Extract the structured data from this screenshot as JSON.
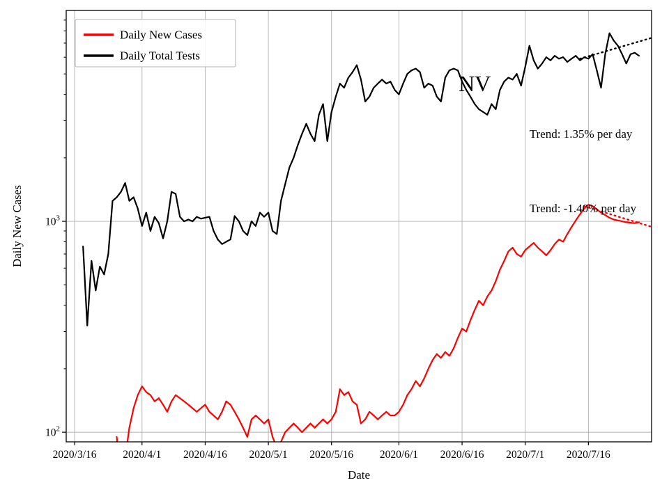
{
  "figure": {
    "background_color": "#ffffff"
  },
  "chart_data": {
    "type": "line",
    "title": "",
    "xlabel": "Date",
    "ylabel": "Daily New Cases",
    "y_scale": "log",
    "ylim": [
      90,
      10000
    ],
    "xlim_days": [
      -2,
      137
    ],
    "x_unit": "days since 2020/3/16, daily cadence",
    "grid": true,
    "grid_color": "#b0b0b0",
    "x_ticks": [
      {
        "day": 0,
        "label": "2020/3/16"
      },
      {
        "day": 16,
        "label": "2020/4/1"
      },
      {
        "day": 31,
        "label": "2020/4/16"
      },
      {
        "day": 46,
        "label": "2020/5/1"
      },
      {
        "day": 61,
        "label": "2020/5/16"
      },
      {
        "day": 77,
        "label": "2020/6/1"
      },
      {
        "day": 92,
        "label": "2020/6/16"
      },
      {
        "day": 107,
        "label": "2020/7/1"
      },
      {
        "day": 122,
        "label": "2020/7/16"
      }
    ],
    "y_ticks": [
      {
        "value": 100,
        "label": "10^2",
        "base": "10",
        "exp": "2"
      },
      {
        "value": 1000,
        "label": "10^3",
        "base": "10",
        "exp": "3"
      }
    ],
    "legend": {
      "position": "upper left",
      "entries": [
        "Daily New Cases",
        "Daily Total Tests"
      ]
    },
    "series": [
      {
        "name": "Daily New Cases",
        "color": "#ff0000",
        "start_day": 10,
        "start_date": "2020/3/26",
        "values": [
          95,
          60,
          75,
          105,
          130,
          150,
          165,
          155,
          150,
          140,
          145,
          135,
          125,
          140,
          150,
          145,
          140,
          135,
          130,
          125,
          130,
          135,
          125,
          120,
          115,
          125,
          140,
          135,
          125,
          115,
          105,
          95,
          115,
          120,
          115,
          110,
          115,
          95,
          85,
          90,
          100,
          105,
          110,
          105,
          100,
          105,
          110,
          105,
          110,
          115,
          110,
          115,
          125,
          160,
          150,
          155,
          140,
          135,
          110,
          115,
          125,
          120,
          115,
          120,
          125,
          120,
          120,
          125,
          135,
          150,
          160,
          175,
          165,
          180,
          200,
          220,
          235,
          225,
          240,
          230,
          250,
          280,
          310,
          300,
          340,
          380,
          420,
          400,
          440,
          470,
          520,
          590,
          650,
          720,
          750,
          700,
          680,
          730,
          760,
          790,
          750,
          720,
          690,
          730,
          780,
          820,
          800,
          870,
          940,
          1010,
          1080,
          1150,
          1200,
          1180,
          1140,
          1100,
          1070,
          1040,
          1020,
          1010,
          1000,
          990,
          985,
          980,
          990
        ]
      },
      {
        "name": "Daily Total Tests",
        "color": "#000000",
        "start_day": 2,
        "start_date": "2020/3/18",
        "values": [
          760,
          320,
          650,
          470,
          610,
          560,
          700,
          1250,
          1300,
          1380,
          1520,
          1250,
          1300,
          1150,
          950,
          1100,
          900,
          1050,
          980,
          830,
          1000,
          1380,
          1350,
          1050,
          1000,
          1020,
          1000,
          1050,
          1030,
          1040,
          1050,
          900,
          820,
          780,
          800,
          820,
          1060,
          1000,
          900,
          860,
          1000,
          950,
          1100,
          1050,
          1100,
          900,
          870,
          1250,
          1500,
          1800,
          2000,
          2300,
          2600,
          2900,
          2600,
          2400,
          3200,
          3600,
          2400,
          3300,
          3900,
          4500,
          4300,
          4800,
          5100,
          5500,
          4700,
          3700,
          3900,
          4300,
          4500,
          4700,
          4500,
          4600,
          4200,
          4000,
          4500,
          5000,
          5200,
          5300,
          5100,
          4300,
          4500,
          4400,
          3900,
          3700,
          4800,
          5200,
          5300,
          5200,
          4600,
          4200,
          3900,
          3600,
          3400,
          3300,
          3200,
          3600,
          3400,
          4200,
          4600,
          4800,
          4700,
          5000,
          4400,
          5400,
          6800,
          5800,
          5300,
          5600,
          6000,
          5800,
          6100,
          5900,
          6000,
          5700,
          5900,
          6100,
          5800,
          6000,
          5900,
          6200,
          5200,
          4300,
          6200,
          7800,
          7200,
          6800,
          6200,
          5600,
          6200,
          6300,
          6100
        ]
      }
    ],
    "trend_lines": [
      {
        "series": "Daily Total Tests",
        "pct_per_day": 1.35,
        "start_day": 120,
        "end_day": 137,
        "start_value": 5900,
        "style": "dotted",
        "color": "#000000"
      },
      {
        "series": "Daily New Cases",
        "pct_per_day": -1.4,
        "start_day": 121,
        "end_day": 137,
        "start_value": 1180,
        "style": "dotted",
        "color": "#ff0000"
      }
    ],
    "annotations": [
      {
        "name": "state-code-annotation",
        "text": "NV",
        "day": 95,
        "value": 4500,
        "font_size": 32,
        "color": "#000000",
        "anchor": "middle"
      },
      {
        "name": "trend-label-tests",
        "text": "Trend: 1.35% per day",
        "day": 108,
        "value": 2600,
        "font_size": 17,
        "color": "#000000",
        "anchor": "start"
      },
      {
        "name": "trend-label-cases",
        "text": "Trend: -1.40% per day",
        "day": 108,
        "value": 1150,
        "font_size": 17,
        "color": "#000000",
        "anchor": "start"
      }
    ]
  }
}
